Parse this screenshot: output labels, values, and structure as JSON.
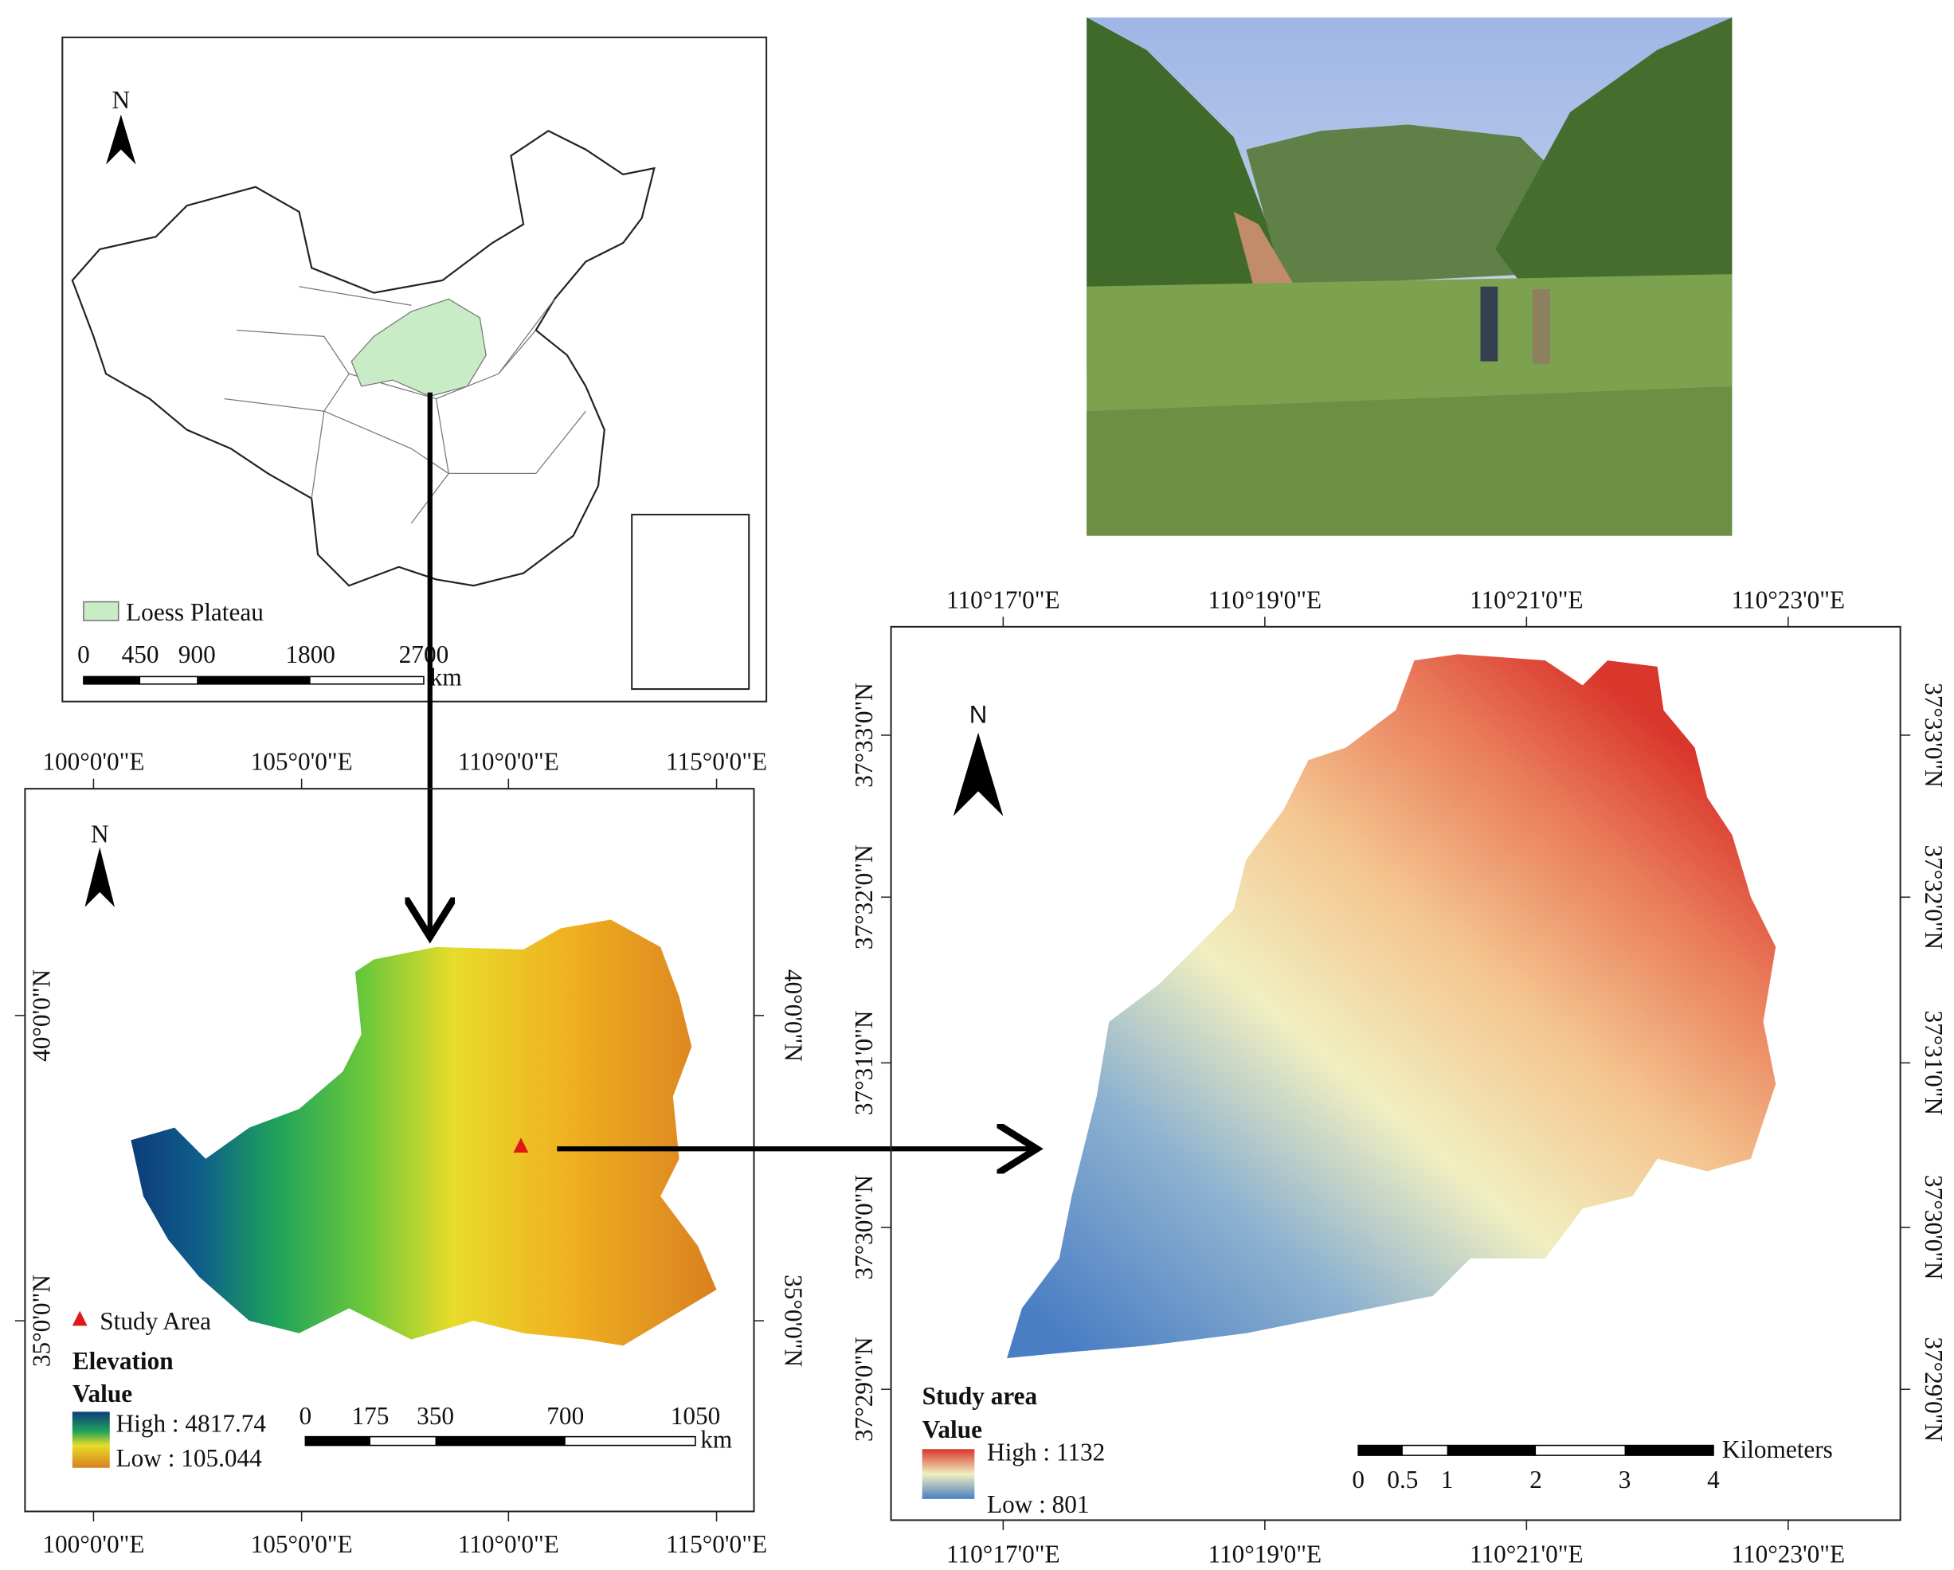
{
  "china_map": {
    "north": "N",
    "legend": "Loess Plateau",
    "scale_labels": [
      0,
      450,
      900,
      1800,
      2700
    ],
    "unit": "km"
  },
  "elevation_map": {
    "lon_labels": [
      "100°0'0\"E",
      "105°0'0\"E",
      "110°0'0\"E",
      "115°0'0\"E"
    ],
    "lat_labels": [
      "40°0'0\"N",
      "35°0'0\"N"
    ],
    "north": "N",
    "study_area": "Study Area",
    "legend_title": "Elevation",
    "legend_subtitle": "Value",
    "high": "High : 4817.74",
    "low": "Low : 105.044",
    "scale_labels": [
      0,
      175,
      350,
      700,
      1050
    ],
    "unit": "km"
  },
  "study_map": {
    "lon_labels": [
      "110°17'0\"E",
      "110°19'0\"E",
      "110°21'0\"E",
      "110°23'0\"E"
    ],
    "lat_labels": [
      "37°33'0\"N",
      "37°32'0\"N",
      "37°31'0\"N",
      "37°30'0\"N",
      "37°29'0\"N"
    ],
    "north": "N",
    "legend_title": "Study area",
    "legend_subtitle": "Value",
    "high": "High : 1132",
    "low": "Low : 801",
    "scale_labels": [
      0,
      0.5,
      1,
      2,
      3,
      4
    ],
    "unit": "Kilometers"
  }
}
